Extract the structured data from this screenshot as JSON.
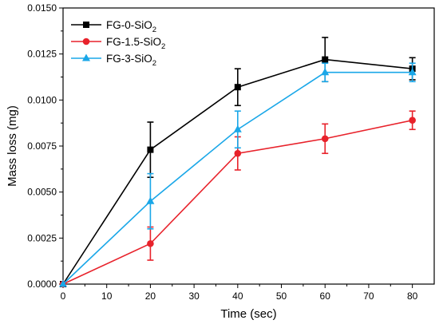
{
  "chart_data": {
    "type": "line",
    "xlabel": "Time (sec)",
    "ylabel": "Mass loss (mg)",
    "xlim": [
      0,
      85
    ],
    "ylim": [
      0,
      0.015
    ],
    "xticks": [
      "0",
      "10",
      "20",
      "30",
      "40",
      "50",
      "60",
      "70",
      "80"
    ],
    "yticks": [
      "0.0000",
      "0.0025",
      "0.0050",
      "0.0075",
      "0.0100",
      "0.0125",
      "0.0150"
    ],
    "grid": false,
    "legend_position": "top-left",
    "series": [
      {
        "name": "FG-0-SiO2",
        "color": "#000000",
        "marker": "square",
        "x": [
          0,
          20,
          40,
          60,
          80
        ],
        "y": [
          0,
          0.0073,
          0.0107,
          0.0122,
          0.0117
        ],
        "err": [
          0,
          0.0015,
          0.001,
          0.0012,
          0.0006
        ]
      },
      {
        "name": "FG-1.5-SiO2",
        "color": "#e8222b",
        "marker": "circle",
        "x": [
          0,
          20,
          40,
          60,
          80
        ],
        "y": [
          0,
          0.0022,
          0.0071,
          0.0079,
          0.0089
        ],
        "err": [
          0,
          0.0009,
          0.0009,
          0.0008,
          0.0005
        ]
      },
      {
        "name": "FG-3-SiO2",
        "color": "#1aa7e8",
        "marker": "triangle",
        "x": [
          0,
          20,
          40,
          60,
          80
        ],
        "y": [
          0,
          0.0045,
          0.0084,
          0.0115,
          0.0115
        ],
        "err": [
          0,
          0.0015,
          0.001,
          0.0005,
          0.0005
        ]
      }
    ],
    "legend": [
      {
        "prefix": "FG-0-SiO",
        "sub": "2"
      },
      {
        "prefix": "FG-1.5-SiO",
        "sub": "2"
      },
      {
        "prefix": "FG-3-SiO",
        "sub": "2"
      }
    ]
  }
}
